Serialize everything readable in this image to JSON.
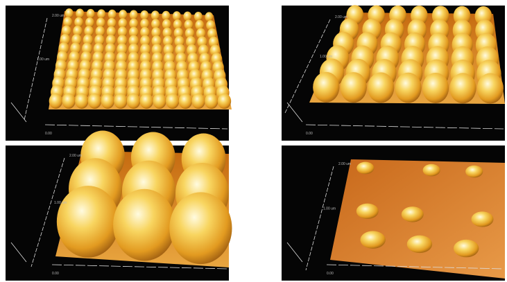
{
  "panels": [
    {
      "axis_labels": [
        "2.00 um",
        "1.00 um",
        "0.00"
      ]
    },
    {
      "axis_labels": [
        "2.00 um",
        "1.00 um",
        "0.00"
      ]
    },
    {
      "axis_labels": [
        "2.00 um",
        "1.00 um",
        "0.00"
      ]
    },
    {
      "axis_labels": [
        "2.00 um",
        "1.00 um",
        "0.00"
      ]
    }
  ]
}
